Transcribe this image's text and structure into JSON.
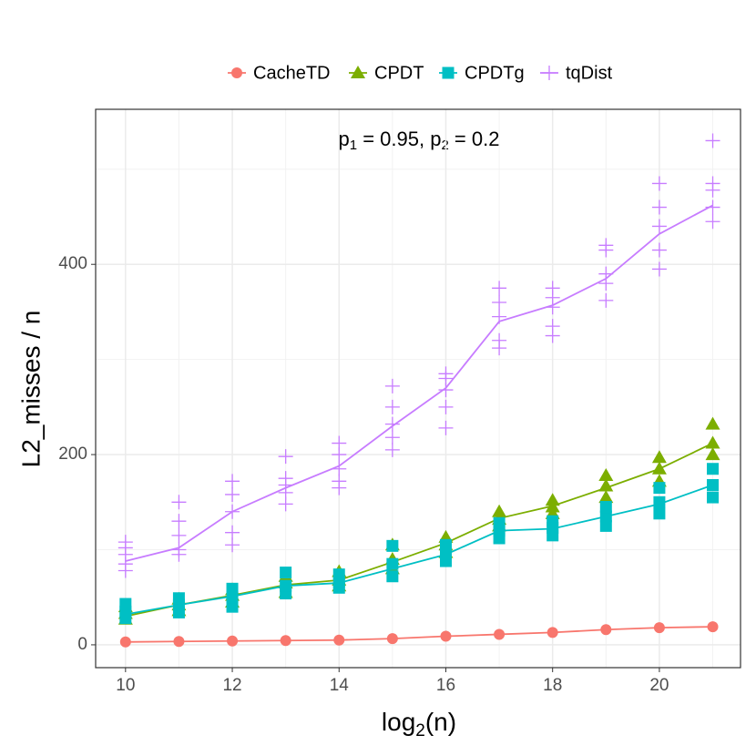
{
  "chart_data": {
    "type": "line",
    "annotation": [
      "p",
      "1",
      " = 0.95, p",
      "2",
      " = 0.2"
    ],
    "x_label": [
      "log",
      "2",
      "(n)"
    ],
    "y_label": "L2_misses / n",
    "x": [
      10,
      11,
      12,
      13,
      14,
      15,
      16,
      17,
      18,
      19,
      20,
      21
    ],
    "xlim": [
      9.44,
      21.52
    ],
    "xticks": [
      10,
      12,
      14,
      16,
      18,
      20
    ],
    "minor_xticks": [
      11,
      13,
      15,
      17,
      19,
      21
    ],
    "ylim": [
      -24,
      563
    ],
    "yticks": [
      0,
      200,
      400
    ],
    "minor_yticks": [
      100,
      300,
      500
    ],
    "grid": true,
    "legend": "top",
    "series": [
      {
        "name": "CacheTD",
        "color": "#F8766D",
        "shape": "circle",
        "values": [
          3,
          3.5,
          4,
          4.5,
          5,
          6.5,
          9,
          11,
          13,
          16,
          18,
          19
        ],
        "samples": [
          [
            3
          ],
          [
            3.5
          ],
          [
            4
          ],
          [
            4.5
          ],
          [
            5
          ],
          [
            6.5
          ],
          [
            9
          ],
          [
            11
          ],
          [
            13
          ],
          [
            16
          ],
          [
            18
          ],
          [
            19
          ]
        ]
      },
      {
        "name": "CPDT",
        "color": "#7CAE00",
        "shape": "triangle",
        "values": [
          30,
          42,
          52,
          63,
          68,
          87,
          107,
          133,
          146,
          165,
          185,
          212
        ],
        "samples": [
          [
            27,
            33,
            40
          ],
          [
            36,
            42,
            48
          ],
          [
            45,
            52,
            58
          ],
          [
            55,
            65,
            72
          ],
          [
            62,
            68,
            77
          ],
          [
            80,
            90,
            105
          ],
          [
            97,
            105,
            113
          ],
          [
            125,
            132,
            140
          ],
          [
            138,
            145,
            152
          ],
          [
            155,
            167,
            178
          ],
          [
            172,
            185,
            197
          ],
          [
            200,
            212,
            232
          ]
        ]
      },
      {
        "name": "CPDTg",
        "color": "#00BFC4",
        "shape": "square",
        "values": [
          32,
          42,
          51,
          62,
          65,
          80,
          95,
          120,
          122,
          135,
          148,
          168
        ],
        "samples": [
          [
            28,
            35,
            43
          ],
          [
            34,
            42,
            49
          ],
          [
            40,
            50,
            59
          ],
          [
            54,
            62,
            76
          ],
          [
            60,
            66,
            74
          ],
          [
            72,
            85,
            104
          ],
          [
            88,
            96,
            105
          ],
          [
            112,
            120,
            128
          ],
          [
            115,
            123,
            130
          ],
          [
            125,
            135,
            145
          ],
          [
            138,
            150,
            165
          ],
          [
            155,
            168,
            185
          ]
        ]
      },
      {
        "name": "tqDist",
        "color": "#C77CFF",
        "shape": "plus",
        "values": [
          88,
          102,
          140,
          165,
          188,
          230,
          270,
          340,
          357,
          385,
          432,
          462
        ],
        "samples": [
          [
            78,
            85,
            95,
            102,
            108
          ],
          [
            95,
            100,
            115,
            130,
            150
          ],
          [
            105,
            118,
            140,
            158,
            172
          ],
          [
            148,
            160,
            168,
            175,
            198
          ],
          [
            165,
            172,
            185,
            200,
            212
          ],
          [
            205,
            218,
            232,
            250,
            272
          ],
          [
            228,
            250,
            268,
            280,
            285
          ],
          [
            312,
            320,
            345,
            360,
            375
          ],
          [
            325,
            335,
            355,
            365,
            375
          ],
          [
            362,
            380,
            390,
            415,
            420
          ],
          [
            395,
            415,
            440,
            460,
            485
          ],
          [
            445,
            460,
            478,
            485,
            530
          ]
        ]
      }
    ]
  }
}
